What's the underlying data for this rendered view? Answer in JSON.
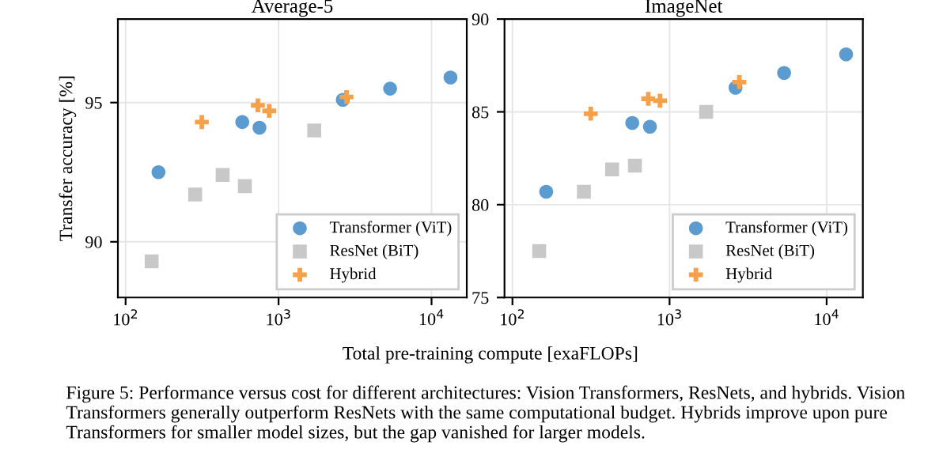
{
  "chart_data": [
    {
      "type": "scatter",
      "title": "Average-5",
      "xlabel": "Total pre-training compute [exaFLOPs]",
      "ylabel": "Transfer accuracy [%]",
      "log": "x",
      "xlim": [
        89,
        17000
      ],
      "xticks": [
        {
          "value": 100,
          "label": "10$^{2}$"
        },
        {
          "value": 1000,
          "label": "10$^{3}$"
        },
        {
          "value": 10000,
          "label": "10$^{4}$"
        }
      ],
      "ylim": [
        88,
        98
      ],
      "yticks": [
        90,
        95
      ],
      "grid": true,
      "legend": "bottom right",
      "annotations": [
        "Figure 5: Performance versus cost for different architectures: Vision Transformers, ResNets, and hybrids. Vision Transformers generally outperform ResNets with the same computational budget. Hybrids improve upon pure Transformers for smaller model sizes, but the gap vanished for larger models."
      ],
      "series": [
        {
          "name": "Transformer (ViT)",
          "color": "#5b9bd0",
          "marker": "circle",
          "x": [
            164,
            579,
            750,
            2630,
            5360,
            13300
          ],
          "values": [
            92.5,
            94.3,
            94.1,
            95.1,
            95.5,
            95.9
          ]
        },
        {
          "name": "ResNet (BiT)",
          "color": "#c8c8c8",
          "marker": "square",
          "x": [
            148,
            285,
            431,
            602,
            1710
          ],
          "values": [
            89.3,
            91.7,
            92.4,
            92.0,
            94.0
          ]
        },
        {
          "name": "Hybrid",
          "color": "#f5a04a",
          "marker": "cross",
          "x": [
            315,
            732,
            869,
            2780
          ],
          "values": [
            94.3,
            94.9,
            94.7,
            95.2
          ]
        }
      ]
    },
    {
      "type": "scatter",
      "title": "ImageNet",
      "log": "x",
      "xlim": [
        89,
        17000
      ],
      "xticks": [
        {
          "value": 100,
          "label": "10$^{2}$"
        },
        {
          "value": 1000,
          "label": "10$^{3}$"
        },
        {
          "value": 10000,
          "label": "10$^{4}$"
        }
      ],
      "ylim": [
        75,
        90
      ],
      "yticks": [
        75,
        80,
        85,
        90
      ],
      "grid": true,
      "legend": "bottom right",
      "series": [
        {
          "name": "Transformer (ViT)",
          "color": "#5b9bd0",
          "marker": "circle",
          "x": [
            164,
            579,
            750,
            2630,
            5360,
            13300
          ],
          "values": [
            80.7,
            84.4,
            84.2,
            86.3,
            87.1,
            88.1
          ]
        },
        {
          "name": "ResNet (BiT)",
          "color": "#c8c8c8",
          "marker": "square",
          "x": [
            148,
            285,
            431,
            602,
            1710
          ],
          "values": [
            77.5,
            80.7,
            81.9,
            82.1,
            85.0
          ]
        },
        {
          "name": "Hybrid",
          "color": "#f5a04a",
          "marker": "cross",
          "x": [
            315,
            732,
            869,
            2780
          ],
          "values": [
            84.9,
            85.7,
            85.6,
            86.6
          ]
        }
      ]
    }
  ]
}
